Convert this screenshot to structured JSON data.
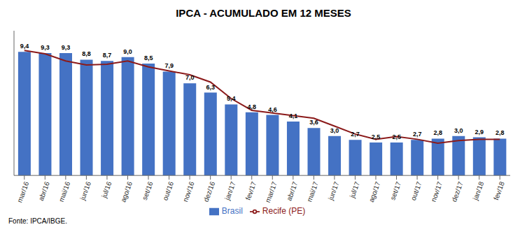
{
  "chart_data": {
    "type": "bar",
    "title": "IPCA - ACUMULADO EM 12 MESES",
    "categories": [
      "mar/16",
      "abr/16",
      "mai/16",
      "jun/16",
      "jul/16",
      "ago/16",
      "set/16",
      "out/16",
      "nov/16",
      "dez/16",
      "jan/17",
      "fev/17",
      "mar/17",
      "abr/17",
      "mai/17",
      "jun/17",
      "jul/17",
      "ago/17",
      "set/17",
      "out/17",
      "nov/17",
      "dez/17",
      "jan/18",
      "fev/18"
    ],
    "series": [
      {
        "name": "Brasil",
        "type": "bar",
        "color": "#4472C4",
        "values": [
          9.4,
          9.3,
          9.3,
          8.8,
          8.7,
          9.0,
          8.5,
          7.9,
          7.0,
          6.3,
          5.4,
          4.8,
          4.6,
          4.1,
          3.6,
          3.0,
          2.7,
          2.5,
          2.5,
          2.7,
          2.8,
          3.0,
          2.9,
          2.8
        ],
        "value_labels": [
          "9,4",
          "9,3",
          "9,3",
          "8,8",
          "8,7",
          "9,0",
          "8,5",
          "7,9",
          "7,0",
          "6,3",
          "5,4",
          "4,8",
          "4,6",
          "4,1",
          "3,6",
          "3,0",
          "2,7",
          "2,5",
          "2,5",
          "2,7",
          "2,8",
          "3,0",
          "2,9",
          "2,8"
        ]
      },
      {
        "name": "Recife (PE)",
        "type": "line",
        "color": "#8B1A1A",
        "values": [
          9.5,
          9.25,
          8.7,
          8.4,
          8.45,
          8.7,
          8.25,
          7.95,
          7.65,
          7.1,
          5.85,
          4.95,
          4.75,
          4.55,
          4.35,
          3.75,
          3.15,
          2.75,
          2.95,
          2.75,
          2.45,
          2.65,
          2.75,
          2.75
        ]
      }
    ],
    "ylim": [
      0,
      11.0
    ],
    "grid": false,
    "legend": "bottom",
    "data_labels": true,
    "tick_labels": "x",
    "annotations": [
      "Fonte: IPCA/IBGE."
    ]
  }
}
